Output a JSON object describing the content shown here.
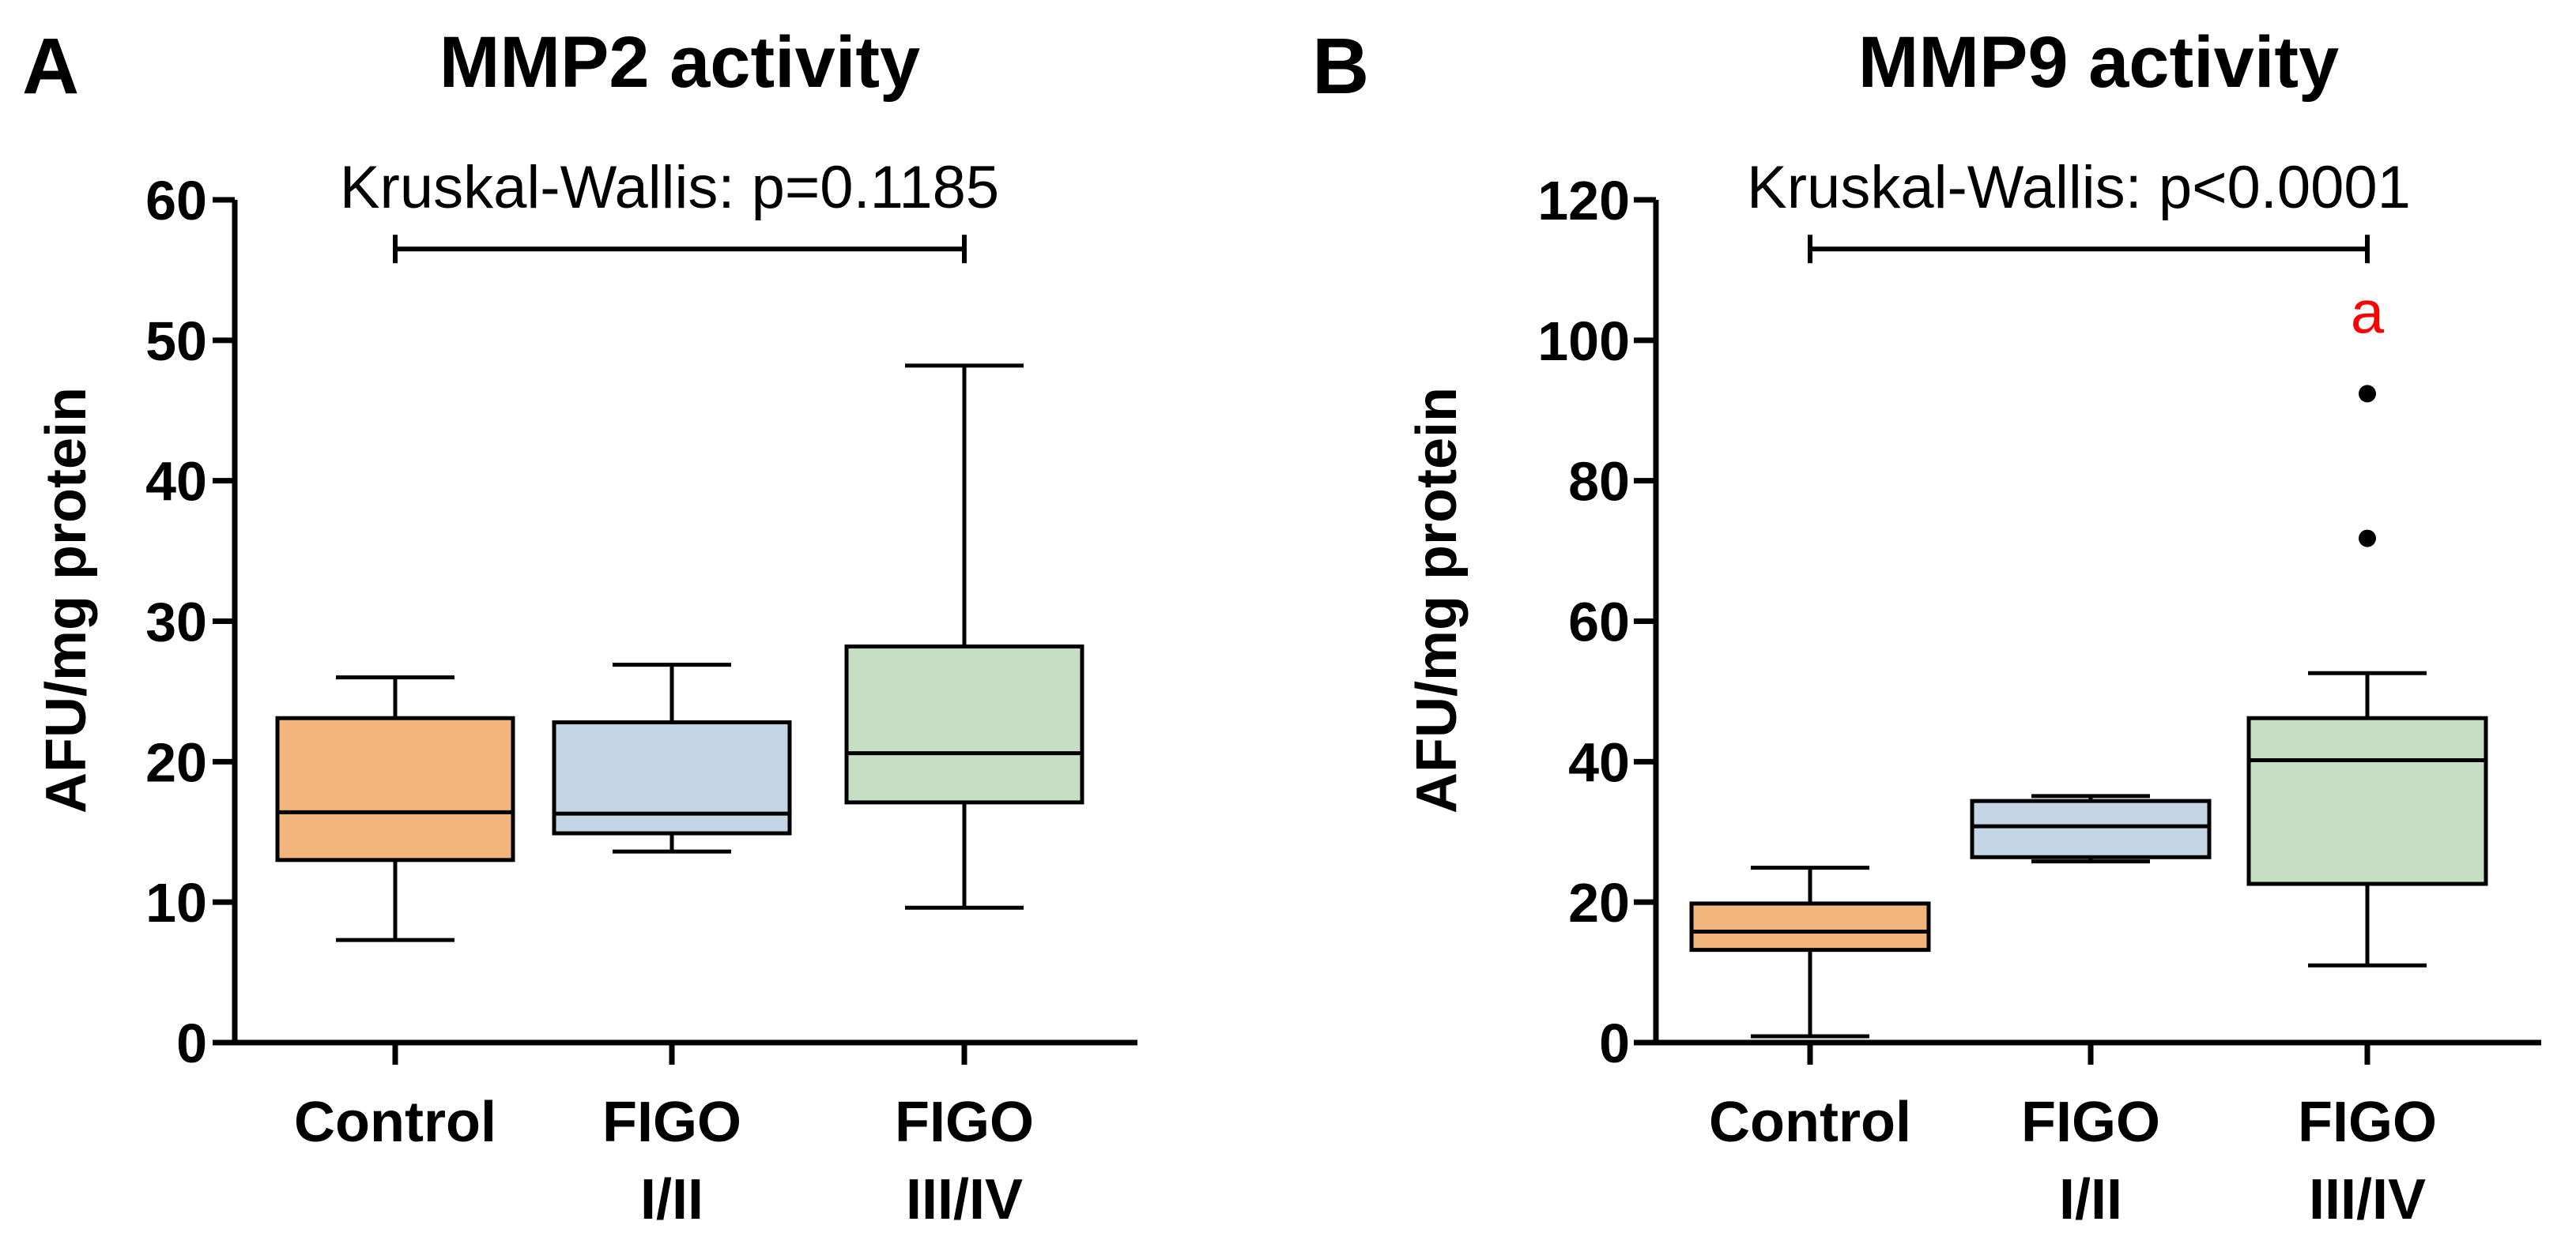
{
  "chart_data": [
    {
      "type": "box",
      "panel_label": "A",
      "title": "MMP2 activity",
      "xlabel": "",
      "ylabel": "AFU/mg protein",
      "ylim": [
        0,
        60
      ],
      "yticks": [
        0,
        10,
        20,
        30,
        40,
        50,
        60
      ],
      "categories": [
        {
          "line1": "Control",
          "line2": ""
        },
        {
          "line1": "FIGO",
          "line2": "I/II"
        },
        {
          "line1": "FIGO",
          "line2": "III/IV"
        }
      ],
      "boxes": [
        {
          "group": "Control",
          "min": 7.3,
          "q1": 13.0,
          "median": 16.4,
          "q3": 23.1,
          "max": 26.0,
          "color": "#f2b57b",
          "outliers": []
        },
        {
          "group": "FIGO I/II",
          "min": 13.6,
          "q1": 14.9,
          "median": 16.3,
          "q3": 22.8,
          "max": 26.9,
          "color": "#c4d6e6",
          "outliers": []
        },
        {
          "group": "FIGO III/IV",
          "min": 9.6,
          "q1": 17.1,
          "median": 20.6,
          "q3": 28.2,
          "max": 48.2,
          "color": "#c6dfc4",
          "outliers": []
        }
      ],
      "annotation": {
        "text": "Kruskal-Wallis: p=0.1185",
        "bracket_y": 56.5,
        "from": 0,
        "to": 2
      },
      "significance_marks": []
    },
    {
      "type": "box",
      "panel_label": "B",
      "title": "MMP9 activity",
      "xlabel": "",
      "ylabel": "AFU/mg protein",
      "ylim": [
        0,
        120
      ],
      "yticks": [
        0,
        20,
        40,
        60,
        80,
        100,
        120
      ],
      "categories": [
        {
          "line1": "Control",
          "line2": ""
        },
        {
          "line1": "FIGO",
          "line2": "I/II"
        },
        {
          "line1": "FIGO",
          "line2": "III/IV"
        }
      ],
      "boxes": [
        {
          "group": "Control",
          "min": 0.9,
          "q1": 13.2,
          "median": 15.8,
          "q3": 19.8,
          "max": 24.9,
          "color": "#f2b57b",
          "outliers": []
        },
        {
          "group": "FIGO I/II",
          "min": 25.8,
          "q1": 26.4,
          "median": 30.8,
          "q3": 34.4,
          "max": 35.1,
          "color": "#c4d6e6",
          "outliers": []
        },
        {
          "group": "FIGO III/IV",
          "min": 11.0,
          "q1": 22.6,
          "median": 40.2,
          "q3": 46.2,
          "max": 52.6,
          "color": "#c6dfc4",
          "outliers": [
            71.8,
            92.4
          ]
        }
      ],
      "annotation": {
        "text": "Kruskal-Wallis: p<0.0001",
        "bracket_y": 113,
        "from": 0,
        "to": 2
      },
      "significance_marks": [
        {
          "group": 2,
          "text": "a",
          "y": 103.5,
          "color": "#ff0000"
        }
      ]
    }
  ]
}
